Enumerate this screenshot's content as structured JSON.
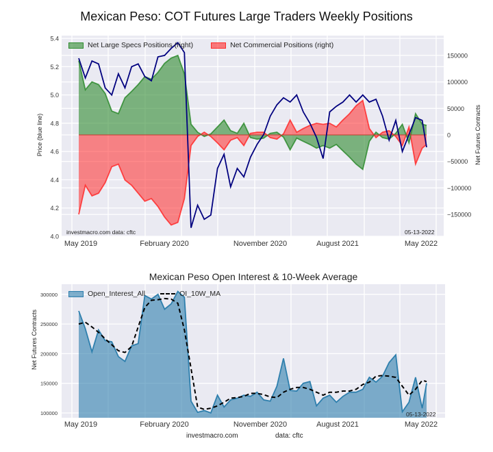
{
  "chart_data": [
    {
      "type": "line",
      "title": "Mexican Peso: COT Futures Large Traders Weekly Positions",
      "xlabel": "",
      "ylabel": "Price (blue line)",
      "ylabel_right": "Net Futures Contracts",
      "ylim": [
        4.0,
        5.42
      ],
      "ylim_right": [
        -187000,
        180000
      ],
      "y_ticks": [
        "4.0",
        "4.2",
        "4.4",
        "4.6",
        "4.8",
        "5.0",
        "5.2",
        "5.4"
      ],
      "y_ticks_right": [
        "150000",
        "100000",
        "50000",
        "0",
        "−50000",
        "−100000",
        "−150000"
      ],
      "x_ticks": [
        "May 2019",
        "February 2020",
        "November 2020",
        "August 2021",
        "May 2022"
      ],
      "grid": true,
      "legend_position": "top-left",
      "x_unit": "weeks since 2019-05-07",
      "x": [
        0,
        3,
        6,
        9,
        12,
        15,
        18,
        21,
        24,
        27,
        30,
        33,
        36,
        39,
        42,
        45,
        48,
        51,
        54,
        57,
        60,
        63,
        66,
        69,
        72,
        75,
        78,
        81,
        84,
        87,
        90,
        93,
        96,
        99,
        102,
        105,
        108,
        111,
        114,
        117,
        120,
        123,
        126,
        129,
        132,
        135,
        138,
        141,
        144,
        147,
        150,
        153,
        156,
        158
      ],
      "series": [
        {
          "name": "Price (blue line)",
          "axis": "left",
          "color": "#00007f",
          "values": [
            5.26,
            5.12,
            5.24,
            5.22,
            5.05,
            5.0,
            5.15,
            5.05,
            5.2,
            5.22,
            5.13,
            5.1,
            5.27,
            5.28,
            5.33,
            5.37,
            5.3,
            4.06,
            4.22,
            4.12,
            4.15,
            4.48,
            4.58,
            4.35,
            4.48,
            4.42,
            4.56,
            4.65,
            4.72,
            4.85,
            4.93,
            4.98,
            4.95,
            5.0,
            4.88,
            4.8,
            4.7,
            4.55,
            4.88,
            4.92,
            4.95,
            5.0,
            4.95,
            5.0,
            4.95,
            4.97,
            4.85,
            4.68,
            4.82,
            4.6,
            4.72,
            4.84,
            4.82,
            4.63
          ]
        },
        {
          "name": "Net Large Specs Positions (right)",
          "axis": "right",
          "color": "#2e8b2e",
          "values": [
            140000,
            85000,
            100000,
            95000,
            78000,
            45000,
            40000,
            70000,
            82000,
            95000,
            110000,
            105000,
            118000,
            135000,
            145000,
            150000,
            115000,
            20000,
            5000,
            -3000,
            2000,
            15000,
            28000,
            8000,
            3000,
            22000,
            -5000,
            -8000,
            -6000,
            3000,
            5000,
            -4000,
            -28000,
            -6000,
            -12000,
            -18000,
            -25000,
            -20000,
            -25000,
            -18000,
            -30000,
            -42000,
            -55000,
            -65000,
            -12000,
            5000,
            -5000,
            -8000,
            3000,
            20000,
            -15000,
            40000,
            20000,
            18000
          ]
        },
        {
          "name": "Net Commercial Positions (right)",
          "axis": "right",
          "color": "#ff2a2a",
          "values": [
            -150000,
            -95000,
            -115000,
            -110000,
            -90000,
            -60000,
            -55000,
            -85000,
            -95000,
            -110000,
            -125000,
            -120000,
            -135000,
            -155000,
            -170000,
            -165000,
            -120000,
            -20000,
            -3000,
            5000,
            -3000,
            -15000,
            -28000,
            -10000,
            -5000,
            -20000,
            3000,
            5000,
            5000,
            -5000,
            -8000,
            2000,
            28000,
            5000,
            12000,
            18000,
            22000,
            20000,
            22000,
            15000,
            28000,
            40000,
            55000,
            65000,
            12000,
            -5000,
            5000,
            8000,
            -3000,
            -20000,
            15000,
            -55000,
            -25000,
            -18000
          ]
        }
      ],
      "annotations": [
        "investmacro.com   data: cftc",
        "05-13-2022"
      ]
    },
    {
      "type": "area",
      "title": "Mexican Peso Open Interest & 10-Week Average",
      "xlabel": "",
      "ylabel": "Net Futures Contracts",
      "ylim": [
        91000,
        318000
      ],
      "y_ticks": [
        "100000",
        "150000",
        "200000",
        "250000",
        "300000"
      ],
      "x_ticks": [
        "May 2019",
        "February 2020",
        "November 2020",
        "August 2021",
        "May 2022"
      ],
      "grid": true,
      "legend_position": "top-left",
      "x_unit": "weeks since 2019-05-07",
      "x": [
        0,
        3,
        6,
        9,
        12,
        15,
        18,
        21,
        24,
        27,
        30,
        33,
        36,
        39,
        42,
        45,
        48,
        51,
        54,
        57,
        60,
        63,
        66,
        69,
        72,
        75,
        78,
        81,
        84,
        87,
        90,
        93,
        96,
        99,
        102,
        105,
        108,
        111,
        114,
        117,
        120,
        123,
        126,
        129,
        132,
        135,
        138,
        141,
        144,
        147,
        150,
        153,
        156,
        158
      ],
      "series": [
        {
          "name": "Open_Interest_All",
          "color": "#2e7fad",
          "values": [
            272000,
            242000,
            203000,
            240000,
            222000,
            220000,
            195000,
            187000,
            213000,
            217000,
            298000,
            292000,
            300000,
            275000,
            284000,
            305000,
            295000,
            120000,
            101000,
            104000,
            100000,
            130000,
            110000,
            122000,
            125000,
            130000,
            128000,
            135000,
            122000,
            120000,
            145000,
            192000,
            138000,
            137000,
            150000,
            153000,
            112000,
            125000,
            130000,
            118000,
            128000,
            135000,
            135000,
            140000,
            160000,
            152000,
            162000,
            185000,
            198000,
            102000,
            118000,
            160000,
            108000,
            150000
          ]
        },
        {
          "name": "OI_10W_MA",
          "color": "#000000",
          "values": [
            250000,
            253000,
            245000,
            236000,
            225000,
            215000,
            205000,
            202000,
            212000,
            245000,
            278000,
            290000,
            291000,
            293000,
            292000,
            285000,
            240000,
            175000,
            110000,
            106000,
            108000,
            112000,
            118000,
            125000,
            126000,
            128000,
            133000,
            133000,
            131000,
            127000,
            126000,
            135000,
            140000,
            143000,
            143000,
            140000,
            135000,
            130000,
            135000,
            135000,
            137000,
            137000,
            140000,
            148000,
            152000,
            162000,
            163000,
            162000,
            160000,
            145000,
            130000,
            140000,
            155000,
            153000
          ]
        }
      ],
      "annotations": [
        "05-13-2022"
      ],
      "footer": [
        "investmacro.com",
        "data: cftc"
      ]
    }
  ],
  "legend": {
    "top": [
      "Net Large Specs Positions (right)",
      "Net Commercial Positions (right)"
    ],
    "bottom": [
      "Open_Interest_All",
      "OI_10W_MA"
    ]
  },
  "text": {
    "top_title": "Mexican Peso: COT Futures Large Traders Weekly Positions",
    "top_ylabel_left": "Price (blue line)",
    "top_ylabel_right": "Net Futures Contracts",
    "top_watermark": "investmacro.com   data: cftc",
    "top_date": "05-13-2022",
    "bottom_title": "Mexican Peso Open Interest & 10-Week Average",
    "bottom_ylabel": "Net Futures Contracts",
    "bottom_date": "05-13-2022",
    "footer_site": "investmacro.com",
    "footer_data": "data: cftc"
  }
}
